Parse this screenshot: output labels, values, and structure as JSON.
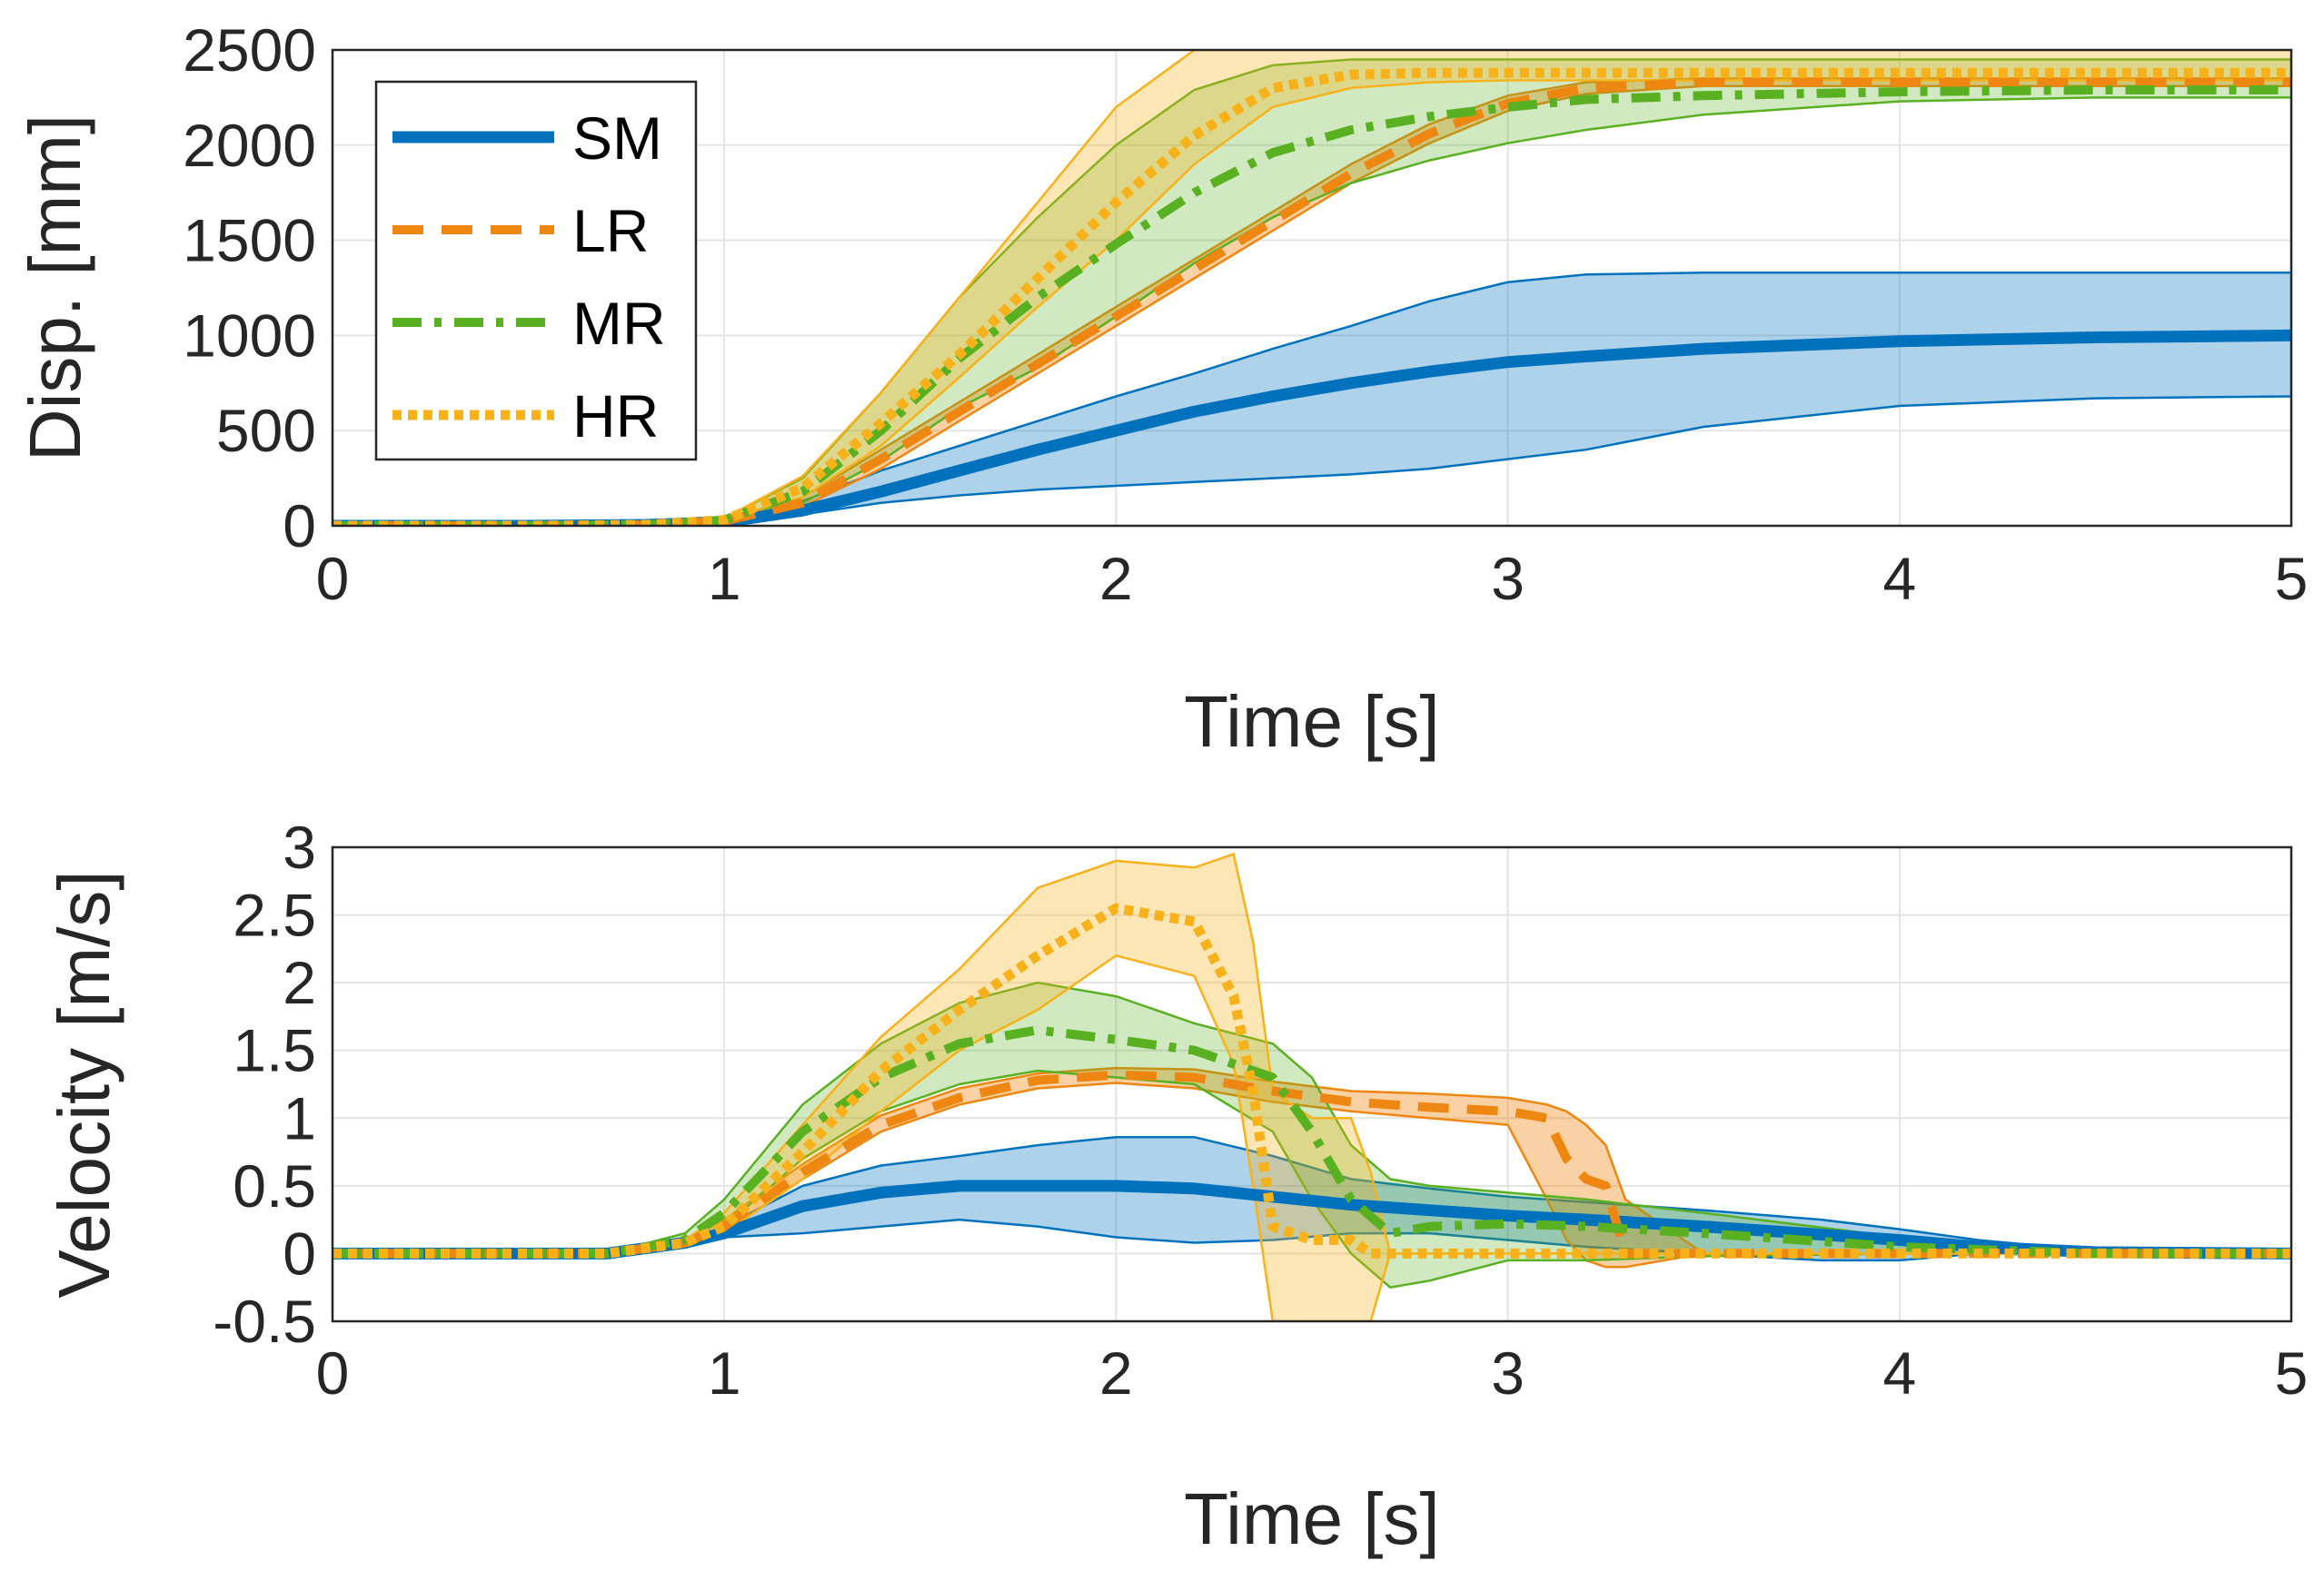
{
  "colors": {
    "SM": "#0072BD",
    "LR": "#D95319",
    "LR_line": "#EE8711",
    "MR": "#59B020",
    "HR": "#F7B21B",
    "grid": "#E3E3E3",
    "axis": "#262626"
  },
  "chart_data": [
    {
      "type": "line",
      "title": "",
      "xlabel": "Time [s]",
      "ylabel": "Disp. [mm]",
      "xlim": [
        0,
        5
      ],
      "ylim": [
        0,
        2500
      ],
      "xticks": [
        0,
        1,
        2,
        3,
        4,
        5
      ],
      "yticks": [
        0,
        500,
        1000,
        1500,
        2000,
        2500
      ],
      "grid": true,
      "legend": {
        "position": "top-left",
        "entries": [
          "SM",
          "LR",
          "MR",
          "HR"
        ]
      },
      "x": [
        0,
        0.5,
        0.8,
        1.0,
        1.2,
        1.4,
        1.6,
        1.8,
        2.0,
        2.2,
        2.4,
        2.6,
        2.8,
        3.0,
        3.2,
        3.5,
        4.0,
        4.5,
        5.0
      ],
      "series": [
        {
          "name": "SM",
          "style": "solid",
          "mean": [
            0,
            0,
            5,
            20,
            80,
            180,
            290,
            400,
            500,
            600,
            680,
            750,
            810,
            860,
            890,
            930,
            970,
            990,
            1000
          ],
          "upper": [
            0,
            0,
            10,
            30,
            130,
            290,
            420,
            550,
            680,
            800,
            930,
            1050,
            1180,
            1280,
            1320,
            1330,
            1330,
            1330,
            1330
          ],
          "lower": [
            0,
            0,
            0,
            10,
            60,
            120,
            160,
            190,
            210,
            230,
            250,
            270,
            300,
            350,
            400,
            520,
            630,
            670,
            680
          ]
        },
        {
          "name": "LR",
          "style": "dashed",
          "mean": [
            0,
            0,
            5,
            25,
            120,
            350,
            600,
            850,
            1100,
            1350,
            1600,
            1850,
            2060,
            2220,
            2300,
            2330,
            2330,
            2330,
            2330
          ],
          "upper": [
            0,
            0,
            8,
            30,
            150,
            400,
            650,
            900,
            1150,
            1400,
            1650,
            1900,
            2110,
            2260,
            2330,
            2350,
            2350,
            2350,
            2350
          ],
          "lower": [
            0,
            0,
            3,
            20,
            100,
            300,
            550,
            800,
            1050,
            1300,
            1550,
            1800,
            2010,
            2180,
            2270,
            2310,
            2310,
            2310,
            2310
          ]
        },
        {
          "name": "MR",
          "style": "dashdot",
          "mean": [
            0,
            0,
            5,
            30,
            180,
            500,
            880,
            1200,
            1480,
            1750,
            1960,
            2080,
            2150,
            2200,
            2240,
            2260,
            2280,
            2290,
            2290
          ],
          "upper": [
            0,
            0,
            8,
            40,
            250,
            700,
            1200,
            1620,
            2000,
            2290,
            2420,
            2450,
            2450,
            2450,
            2450,
            2450,
            2450,
            2450,
            2450
          ],
          "lower": [
            0,
            0,
            3,
            20,
            120,
            340,
            620,
            830,
            1100,
            1380,
            1620,
            1800,
            1920,
            2010,
            2080,
            2160,
            2230,
            2250,
            2250
          ]
        },
        {
          "name": "HR",
          "style": "dotted",
          "mean": [
            0,
            0,
            5,
            30,
            200,
            540,
            900,
            1300,
            1700,
            2050,
            2300,
            2370,
            2380,
            2380,
            2380,
            2380,
            2380,
            2380,
            2380
          ],
          "upper": [
            0,
            0,
            8,
            40,
            260,
            700,
            1200,
            1700,
            2200,
            2500,
            2500,
            2500,
            2500,
            2500,
            2500,
            2500,
            2500,
            2500,
            2500
          ],
          "lower": [
            0,
            0,
            3,
            20,
            150,
            420,
            780,
            1150,
            1500,
            1900,
            2200,
            2300,
            2330,
            2340,
            2340,
            2340,
            2340,
            2340,
            2340
          ]
        }
      ]
    },
    {
      "type": "line",
      "title": "",
      "xlabel": "Time [s]",
      "ylabel": "Velocity [m/s]",
      "xlim": [
        0,
        5
      ],
      "ylim": [
        -0.5,
        3
      ],
      "xticks": [
        0,
        1,
        2,
        3,
        4,
        5
      ],
      "yticks": [
        -0.5,
        0,
        0.5,
        1,
        1.5,
        2,
        2.5,
        3
      ],
      "grid": true,
      "series": [
        {
          "name": "SM",
          "style": "solid",
          "x": [
            0,
            0.7,
            0.9,
            1.0,
            1.2,
            1.4,
            1.6,
            1.8,
            2.0,
            2.2,
            2.4,
            2.6,
            2.8,
            3.0,
            3.2,
            3.5,
            3.8,
            4.0,
            4.2,
            4.5,
            5.0
          ],
          "mean": [
            0,
            0,
            0.08,
            0.15,
            0.35,
            0.45,
            0.5,
            0.5,
            0.5,
            0.48,
            0.42,
            0.36,
            0.32,
            0.28,
            0.25,
            0.2,
            0.14,
            0.1,
            0.05,
            0.01,
            0
          ],
          "upper": [
            0,
            0,
            0.1,
            0.2,
            0.5,
            0.65,
            0.72,
            0.8,
            0.86,
            0.86,
            0.72,
            0.55,
            0.48,
            0.42,
            0.38,
            0.32,
            0.25,
            0.18,
            0.1,
            0.02,
            0
          ],
          "lower": [
            0,
            0,
            0.05,
            0.12,
            0.15,
            0.2,
            0.25,
            0.2,
            0.12,
            0.08,
            0.1,
            0.15,
            0.15,
            0.1,
            0.05,
            0.0,
            -0.05,
            -0.05,
            0.0,
            0.0,
            0
          ]
        },
        {
          "name": "LR",
          "style": "dashed",
          "x": [
            0,
            0.7,
            0.9,
            1.0,
            1.2,
            1.4,
            1.6,
            1.8,
            2.0,
            2.2,
            2.4,
            2.6,
            2.8,
            3.0,
            3.1,
            3.15,
            3.2,
            3.25,
            3.3,
            3.5,
            5.0
          ],
          "mean": [
            0,
            0,
            0.08,
            0.2,
            0.6,
            0.95,
            1.15,
            1.28,
            1.32,
            1.3,
            1.2,
            1.12,
            1.08,
            1.05,
            1.0,
            0.7,
            0.55,
            0.5,
            0.0,
            0.0,
            0
          ],
          "upper": [
            0,
            0,
            0.1,
            0.25,
            0.66,
            1.02,
            1.22,
            1.33,
            1.37,
            1.36,
            1.27,
            1.2,
            1.18,
            1.15,
            1.1,
            1.05,
            0.95,
            0.8,
            0.4,
            0.0,
            0
          ],
          "lower": [
            0,
            0,
            0.06,
            0.15,
            0.55,
            0.9,
            1.1,
            1.22,
            1.26,
            1.22,
            1.12,
            1.05,
            1.0,
            0.95,
            0.4,
            0.1,
            -0.05,
            -0.1,
            -0.1,
            0.0,
            0
          ]
        },
        {
          "name": "MR",
          "style": "dashdot",
          "x": [
            0,
            0.7,
            0.9,
            1.0,
            1.2,
            1.4,
            1.6,
            1.8,
            2.0,
            2.2,
            2.4,
            2.5,
            2.6,
            2.7,
            2.8,
            3.0,
            3.2,
            3.5,
            4.0,
            4.5,
            5.0
          ],
          "mean": [
            0,
            0,
            0.1,
            0.3,
            0.9,
            1.3,
            1.55,
            1.65,
            1.58,
            1.5,
            1.3,
            0.9,
            0.4,
            0.15,
            0.2,
            0.22,
            0.2,
            0.15,
            0.05,
            0.0,
            0
          ],
          "upper": [
            0,
            0,
            0.15,
            0.4,
            1.1,
            1.55,
            1.85,
            2.0,
            1.9,
            1.7,
            1.55,
            1.3,
            0.8,
            0.55,
            0.5,
            0.45,
            0.4,
            0.3,
            0.12,
            0.02,
            0
          ],
          "lower": [
            0,
            0,
            0.05,
            0.2,
            0.7,
            1.05,
            1.25,
            1.35,
            1.3,
            1.25,
            0.9,
            0.4,
            0.0,
            -0.25,
            -0.2,
            -0.05,
            -0.05,
            -0.02,
            0.0,
            0.0,
            0
          ]
        },
        {
          "name": "HR",
          "style": "dotted",
          "x": [
            0,
            0.7,
            0.9,
            1.0,
            1.2,
            1.4,
            1.6,
            1.8,
            2.0,
            2.2,
            2.3,
            2.35,
            2.4,
            2.5,
            2.6,
            2.65,
            2.7,
            5.0
          ],
          "mean": [
            0,
            0,
            0.08,
            0.2,
            0.75,
            1.35,
            1.8,
            2.2,
            2.55,
            2.45,
            1.9,
            1.2,
            0.2,
            0.1,
            0.1,
            0.0,
            0.0,
            0
          ],
          "upper": [
            0,
            0,
            0.1,
            0.3,
            0.95,
            1.6,
            2.1,
            2.7,
            2.9,
            2.85,
            2.95,
            2.3,
            1.2,
            1.0,
            1.0,
            0.6,
            0.0,
            0
          ],
          "lower": [
            0,
            0,
            0.05,
            0.15,
            0.55,
            1.05,
            1.5,
            1.8,
            2.2,
            2.05,
            1.4,
            0.5,
            -0.5,
            -0.5,
            -0.5,
            -0.5,
            0.0,
            0
          ]
        }
      ]
    }
  ]
}
